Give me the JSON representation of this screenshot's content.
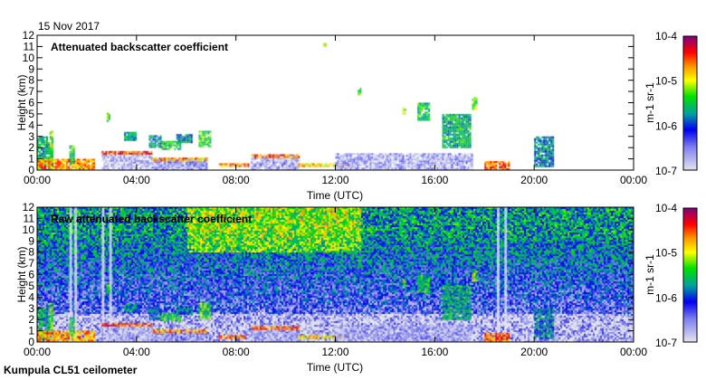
{
  "date": "15 Nov 2017",
  "footer": "Kumpula CL51 ceilometer",
  "colors": {
    "axis": "#000000",
    "background": "#ffffff"
  },
  "chart_data": [
    {
      "type": "heatmap",
      "title": "Attenuated backscatter coefficient",
      "xlabel": "Time (UTC)",
      "ylabel": "Height (km)",
      "xlim_hours": [
        0,
        24
      ],
      "ylim": [
        0,
        12
      ],
      "xticks": [
        "00:00",
        "04:00",
        "08:00",
        "12:00",
        "16:00",
        "20:00",
        "00:00"
      ],
      "yticks": [
        "0",
        "1",
        "2",
        "3",
        "4",
        "5",
        "6",
        "7",
        "8",
        "9",
        "10",
        "11",
        "12"
      ],
      "colorbar": {
        "label": "m-1 sr-1",
        "ticks": [
          "10-7",
          "10-6",
          "10-5",
          "10-4"
        ],
        "log10_range": [
          -7,
          -4
        ]
      },
      "features": [
        {
          "t": [
            0,
            0.6
          ],
          "h": [
            0,
            3
          ],
          "log10": -5.6
        },
        {
          "t": [
            0,
            2.3
          ],
          "h": [
            0,
            1
          ],
          "log10": -4.7
        },
        {
          "t": [
            0.5,
            0.6
          ],
          "h": [
            1,
            3.5
          ],
          "log10": -5.2
        },
        {
          "t": [
            1.3,
            1.5
          ],
          "h": [
            0.5,
            2.2
          ],
          "log10": -5.4
        },
        {
          "t": [
            2.6,
            4.6
          ],
          "h": [
            0,
            1.7
          ],
          "log10": -6.8
        },
        {
          "t": [
            2.6,
            4.6
          ],
          "h": [
            1.4,
            1.7
          ],
          "log10": -4.5
        },
        {
          "t": [
            2.8,
            2.9
          ],
          "h": [
            4.4,
            5.1
          ],
          "log10": -5.3
        },
        {
          "t": [
            3.5,
            4.0
          ],
          "h": [
            2.6,
            3.4
          ],
          "log10": -5.7
        },
        {
          "t": [
            4.5,
            5.0
          ],
          "h": [
            2.0,
            3.1
          ],
          "log10": -5.8
        },
        {
          "t": [
            5.0,
            5.8
          ],
          "h": [
            1.8,
            2.6
          ],
          "log10": -5.5
        },
        {
          "t": [
            5.6,
            6.2
          ],
          "h": [
            2.5,
            3.2
          ],
          "log10": -5.8
        },
        {
          "t": [
            6.5,
            7.0
          ],
          "h": [
            2.2,
            3.5
          ],
          "log10": -5.4
        },
        {
          "t": [
            4.6,
            6.8
          ],
          "h": [
            0,
            1.1
          ],
          "log10": -6.6
        },
        {
          "t": [
            4.6,
            6.8
          ],
          "h": [
            0.8,
            1.1
          ],
          "log10": -4.7
        },
        {
          "t": [
            7.3,
            8.5
          ],
          "h": [
            0.3,
            0.6
          ],
          "log10": -4.6
        },
        {
          "t": [
            8.6,
            10.5
          ],
          "h": [
            0,
            1.4
          ],
          "log10": -6.7
        },
        {
          "t": [
            8.6,
            10.5
          ],
          "h": [
            1.1,
            1.4
          ],
          "log10": -4.6
        },
        {
          "t": [
            10.5,
            12.5
          ],
          "h": [
            0.3,
            0.6
          ],
          "log10": -4.8
        },
        {
          "t": [
            12,
            17.5
          ],
          "h": [
            0,
            1.5
          ],
          "log10": -6.7
        },
        {
          "t": [
            12.9,
            13.0
          ],
          "h": [
            6.8,
            7.3
          ],
          "log10": -5.4
        },
        {
          "t": [
            14.7,
            14.8
          ],
          "h": [
            5,
            5.6
          ],
          "log10": -5.1
        },
        {
          "t": [
            15.3,
            15.8
          ],
          "h": [
            4.5,
            6
          ],
          "log10": -5.5
        },
        {
          "t": [
            16.3,
            17.4
          ],
          "h": [
            2,
            5
          ],
          "log10": -5.6
        },
        {
          "t": [
            17.5,
            17.7
          ],
          "h": [
            5.5,
            6.5
          ],
          "log10": -5.2
        },
        {
          "t": [
            18,
            19
          ],
          "h": [
            0,
            0.8
          ],
          "log10": -4.5
        },
        {
          "t": [
            20.0,
            20.8
          ],
          "h": [
            0.3,
            3
          ],
          "log10": -5.8
        },
        {
          "t": [
            11.5,
            11.6
          ],
          "h": [
            11.1,
            11.3
          ],
          "log10": -5.0
        }
      ]
    },
    {
      "type": "heatmap",
      "title": "Raw attenuated backscatter coefficient",
      "xlabel": "Time (UTC)",
      "ylabel": "Height (km)",
      "xlim_hours": [
        0,
        24
      ],
      "ylim": [
        0,
        12
      ],
      "xticks": [
        "00:00",
        "04:00",
        "08:00",
        "12:00",
        "16:00",
        "20:00",
        "00:00"
      ],
      "yticks": [
        "0",
        "1",
        "2",
        "3",
        "4",
        "5",
        "6",
        "7",
        "8",
        "9",
        "10",
        "11",
        "12"
      ],
      "colorbar": {
        "label": "m-1 sr-1",
        "ticks": [
          "10-7",
          "10-6",
          "10-5",
          "10-4"
        ],
        "log10_range": [
          -7,
          -4
        ]
      },
      "background_noise": "height-increasing noise, green/blue above 3 km, yellow-orange 6–13 UTC above 8 km"
    }
  ]
}
